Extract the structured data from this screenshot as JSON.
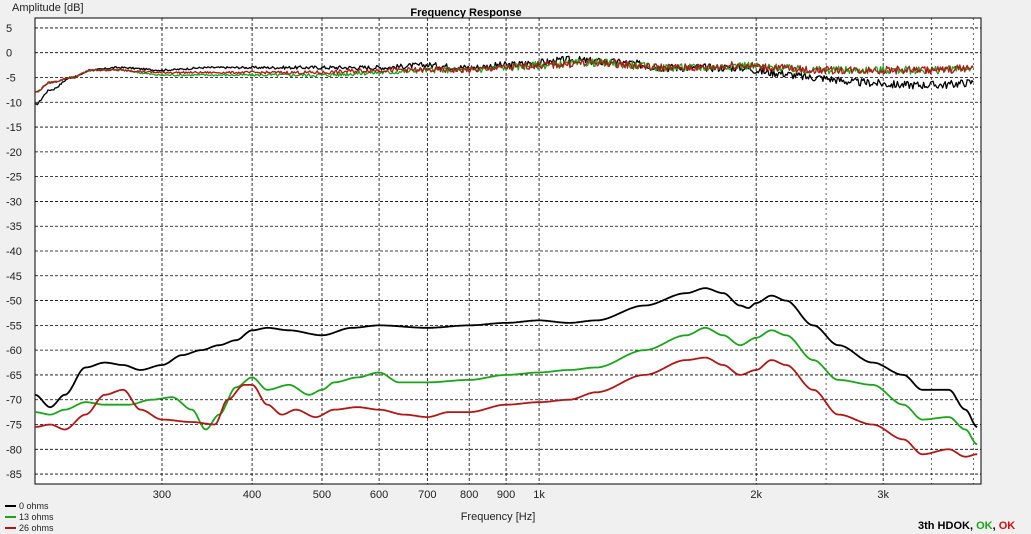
{
  "chart_data": {
    "type": "line",
    "title": "Frequency Response",
    "xlabel": "Frequency [Hz]",
    "ylabel": "Amplitude [dB]",
    "x_scale": "log",
    "xlim": [
      200,
      4100
    ],
    "ylim": [
      -87,
      7
    ],
    "y_ticks": [
      5,
      0,
      -5,
      -10,
      -15,
      -20,
      -25,
      -30,
      -35,
      -40,
      -45,
      -50,
      -55,
      -60,
      -65,
      -70,
      -75,
      -80,
      -85
    ],
    "x_ticks": [
      {
        "value": 300,
        "label": "300"
      },
      {
        "value": 400,
        "label": "400"
      },
      {
        "value": 500,
        "label": "500"
      },
      {
        "value": 600,
        "label": "600"
      },
      {
        "value": 700,
        "label": "700"
      },
      {
        "value": 800,
        "label": "800"
      },
      {
        "value": 900,
        "label": "900"
      },
      {
        "value": 1000,
        "label": "1k"
      },
      {
        "value": 2000,
        "label": "2k"
      },
      {
        "value": 3000,
        "label": "3k"
      }
    ],
    "grid": true,
    "legend_position": "bottom-left",
    "series": [
      {
        "name": "0 ohms",
        "color": "#000000",
        "upper": [
          [
            200,
            -10.5
          ],
          [
            210,
            -7.5
          ],
          [
            225,
            -5
          ],
          [
            240,
            -3.5
          ],
          [
            260,
            -3
          ],
          [
            300,
            -3.5
          ],
          [
            350,
            -3
          ],
          [
            400,
            -3
          ],
          [
            500,
            -3
          ],
          [
            600,
            -3
          ],
          [
            700,
            -2.5
          ],
          [
            800,
            -3
          ],
          [
            900,
            -2.5
          ],
          [
            1000,
            -2
          ],
          [
            1100,
            -1.5
          ],
          [
            1300,
            -2
          ],
          [
            1500,
            -3
          ],
          [
            1700,
            -3
          ],
          [
            1900,
            -3
          ],
          [
            2100,
            -4
          ],
          [
            2400,
            -5
          ],
          [
            2800,
            -6
          ],
          [
            3200,
            -6.5
          ],
          [
            3600,
            -6.5
          ],
          [
            4000,
            -6
          ]
        ],
        "lower": [
          [
            200,
            -69
          ],
          [
            210,
            -71.5
          ],
          [
            220,
            -69
          ],
          [
            235,
            -63.5
          ],
          [
            250,
            -62.5
          ],
          [
            265,
            -63
          ],
          [
            280,
            -64
          ],
          [
            300,
            -63
          ],
          [
            320,
            -61
          ],
          [
            340,
            -60
          ],
          [
            360,
            -59
          ],
          [
            380,
            -58
          ],
          [
            400,
            -56
          ],
          [
            420,
            -55.5
          ],
          [
            450,
            -56
          ],
          [
            500,
            -57
          ],
          [
            550,
            -55.5
          ],
          [
            600,
            -55
          ],
          [
            700,
            -55.5
          ],
          [
            800,
            -55
          ],
          [
            900,
            -54.5
          ],
          [
            1000,
            -54
          ],
          [
            1100,
            -54.5
          ],
          [
            1200,
            -54
          ],
          [
            1400,
            -51
          ],
          [
            1600,
            -48.5
          ],
          [
            1700,
            -47.5
          ],
          [
            1800,
            -48.5
          ],
          [
            1900,
            -51
          ],
          [
            1950,
            -51.5
          ],
          [
            2000,
            -50.5
          ],
          [
            2100,
            -49
          ],
          [
            2200,
            -50
          ],
          [
            2400,
            -55
          ],
          [
            2600,
            -59
          ],
          [
            2900,
            -62.5
          ],
          [
            3200,
            -65
          ],
          [
            3400,
            -68
          ],
          [
            3700,
            -68
          ],
          [
            3900,
            -72
          ],
          [
            4050,
            -75.5
          ]
        ]
      },
      {
        "name": "13 ohms",
        "color": "#1aa51a",
        "upper": [
          [
            200,
            -8
          ],
          [
            210,
            -6
          ],
          [
            225,
            -5
          ],
          [
            240,
            -3.5
          ],
          [
            260,
            -3.5
          ],
          [
            300,
            -4.5
          ],
          [
            400,
            -4.5
          ],
          [
            500,
            -4.5
          ],
          [
            600,
            -4
          ],
          [
            700,
            -3.5
          ],
          [
            800,
            -3.5
          ],
          [
            900,
            -3
          ],
          [
            1000,
            -2.5
          ],
          [
            1200,
            -2
          ],
          [
            1500,
            -3
          ],
          [
            1700,
            -3
          ],
          [
            1900,
            -2.5
          ],
          [
            2100,
            -3
          ],
          [
            2400,
            -3.5
          ],
          [
            2800,
            -3.5
          ],
          [
            3200,
            -3.5
          ],
          [
            3600,
            -3.5
          ],
          [
            4000,
            -3
          ]
        ],
        "lower": [
          [
            200,
            -72.5
          ],
          [
            210,
            -73
          ],
          [
            220,
            -72
          ],
          [
            235,
            -70.5
          ],
          [
            250,
            -71
          ],
          [
            270,
            -71
          ],
          [
            290,
            -70
          ],
          [
            310,
            -69.5
          ],
          [
            330,
            -72
          ],
          [
            345,
            -76
          ],
          [
            360,
            -73
          ],
          [
            380,
            -67.5
          ],
          [
            400,
            -65.5
          ],
          [
            420,
            -68
          ],
          [
            450,
            -67
          ],
          [
            480,
            -69
          ],
          [
            500,
            -68
          ],
          [
            520,
            -66.5
          ],
          [
            560,
            -65.5
          ],
          [
            600,
            -64.5
          ],
          [
            640,
            -66.5
          ],
          [
            700,
            -66.5
          ],
          [
            800,
            -66
          ],
          [
            900,
            -65
          ],
          [
            1000,
            -64.5
          ],
          [
            1100,
            -64
          ],
          [
            1200,
            -63.5
          ],
          [
            1400,
            -60
          ],
          [
            1600,
            -57
          ],
          [
            1700,
            -55.5
          ],
          [
            1800,
            -57
          ],
          [
            1900,
            -59
          ],
          [
            2000,
            -57.5
          ],
          [
            2100,
            -56
          ],
          [
            2200,
            -57
          ],
          [
            2400,
            -62
          ],
          [
            2600,
            -66
          ],
          [
            2900,
            -67
          ],
          [
            3200,
            -71
          ],
          [
            3400,
            -74
          ],
          [
            3700,
            -73.5
          ],
          [
            3900,
            -76
          ],
          [
            4050,
            -79
          ]
        ]
      },
      {
        "name": "26 ohms",
        "color": "#b01818",
        "upper": [
          [
            200,
            -8
          ],
          [
            210,
            -6
          ],
          [
            225,
            -5
          ],
          [
            240,
            -3.5
          ],
          [
            260,
            -3.5
          ],
          [
            300,
            -4
          ],
          [
            400,
            -4
          ],
          [
            500,
            -4
          ],
          [
            600,
            -3.5
          ],
          [
            700,
            -3.5
          ],
          [
            800,
            -3.5
          ],
          [
            900,
            -3
          ],
          [
            1000,
            -2.5
          ],
          [
            1200,
            -2
          ],
          [
            1500,
            -3
          ],
          [
            1700,
            -3
          ],
          [
            1900,
            -2.5
          ],
          [
            2100,
            -3
          ],
          [
            2400,
            -3.5
          ],
          [
            2800,
            -3.5
          ],
          [
            3200,
            -3.5
          ],
          [
            3600,
            -3.5
          ],
          [
            4000,
            -3
          ]
        ],
        "lower": [
          [
            200,
            -75.5
          ],
          [
            210,
            -75
          ],
          [
            220,
            -76
          ],
          [
            235,
            -73
          ],
          [
            250,
            -69
          ],
          [
            265,
            -68
          ],
          [
            280,
            -72
          ],
          [
            300,
            -74
          ],
          [
            330,
            -74.5
          ],
          [
            355,
            -75
          ],
          [
            370,
            -70
          ],
          [
            390,
            -67
          ],
          [
            400,
            -67
          ],
          [
            420,
            -71
          ],
          [
            440,
            -73
          ],
          [
            460,
            -72
          ],
          [
            490,
            -73.5
          ],
          [
            520,
            -72
          ],
          [
            560,
            -71.5
          ],
          [
            600,
            -72
          ],
          [
            650,
            -73
          ],
          [
            700,
            -73.5
          ],
          [
            750,
            -72.5
          ],
          [
            800,
            -72.5
          ],
          [
            900,
            -71
          ],
          [
            1000,
            -70.5
          ],
          [
            1100,
            -70
          ],
          [
            1200,
            -68.5
          ],
          [
            1400,
            -65
          ],
          [
            1600,
            -62
          ],
          [
            1700,
            -61.5
          ],
          [
            1800,
            -63
          ],
          [
            1900,
            -65
          ],
          [
            2000,
            -64
          ],
          [
            2100,
            -62
          ],
          [
            2200,
            -63
          ],
          [
            2400,
            -68
          ],
          [
            2600,
            -73
          ],
          [
            2900,
            -75
          ],
          [
            3200,
            -78
          ],
          [
            3400,
            -81
          ],
          [
            3700,
            -80
          ],
          [
            3900,
            -81.5
          ],
          [
            4050,
            -81
          ]
        ]
      }
    ]
  },
  "status": {
    "label": "3th HD",
    "states": [
      {
        "text": "OK",
        "color": "#000000"
      },
      {
        "text": "OK",
        "color": "#1aa51a"
      },
      {
        "text": "OK",
        "color": "#d01010"
      }
    ]
  }
}
